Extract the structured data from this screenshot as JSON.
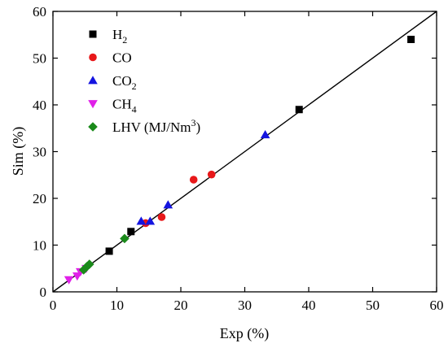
{
  "chart_data": {
    "type": "scatter",
    "title": "",
    "xlabel": "Exp (%)",
    "ylabel": "Sim (%)",
    "xlim": [
      0,
      60
    ],
    "ylim": [
      0,
      60
    ],
    "xticks": [
      0,
      10,
      20,
      30,
      40,
      50,
      60
    ],
    "yticks": [
      0,
      10,
      20,
      30,
      40,
      50,
      60
    ],
    "grid": false,
    "legend_position": "top-left",
    "reference_line": {
      "type": "y=x",
      "from": [
        0,
        0
      ],
      "to": [
        60,
        60
      ],
      "color": "#000000"
    },
    "series": [
      {
        "name": "H2",
        "label_main": "H",
        "label_sub": "2",
        "label_sup": "",
        "label_tail": "",
        "marker": "square",
        "color": "#000000",
        "points": [
          [
            8.8,
            8.7
          ],
          [
            12.2,
            12.9
          ],
          [
            38.5,
            39.0
          ],
          [
            56.0,
            54.0
          ]
        ]
      },
      {
        "name": "CO",
        "label_main": "CO",
        "label_sub": "",
        "label_sup": "",
        "label_tail": "",
        "marker": "circle",
        "color": "#e8181a",
        "points": [
          [
            14.5,
            14.7
          ],
          [
            17.0,
            16.0
          ],
          [
            22.0,
            24.0
          ],
          [
            24.8,
            25.1
          ]
        ]
      },
      {
        "name": "CO2",
        "label_main": "CO",
        "label_sub": "2",
        "label_sup": "",
        "label_tail": "",
        "marker": "triangle-up",
        "color": "#1414e0",
        "points": [
          [
            13.8,
            15.1
          ],
          [
            15.2,
            15.1
          ],
          [
            18.0,
            18.6
          ],
          [
            33.2,
            33.6
          ]
        ]
      },
      {
        "name": "CH4",
        "label_main": "CH",
        "label_sub": "4",
        "label_sup": "",
        "label_tail": "",
        "marker": "triangle-down",
        "color": "#e020e8",
        "points": [
          [
            2.5,
            2.6
          ],
          [
            3.8,
            3.4
          ],
          [
            4.3,
            4.3
          ],
          [
            5.2,
            5.0
          ]
        ]
      },
      {
        "name": "LHV (MJ/Nm3)",
        "label_main": "LHV (MJ/Nm",
        "label_sub": "",
        "label_sup": "3",
        "label_tail": ")",
        "marker": "diamond",
        "color": "#1a8a1a",
        "points": [
          [
            4.8,
            4.7
          ],
          [
            5.3,
            5.4
          ],
          [
            5.7,
            5.9
          ],
          [
            11.2,
            11.4
          ]
        ]
      }
    ]
  }
}
